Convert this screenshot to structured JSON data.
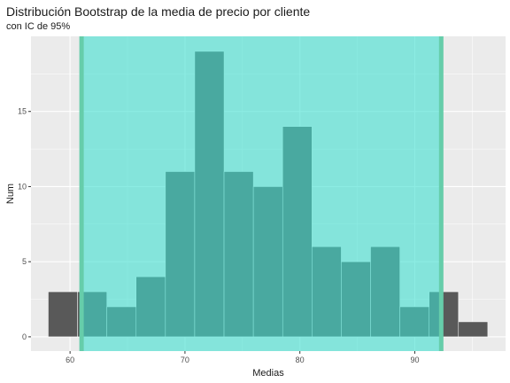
{
  "title": "Distribución Bootstrap de la media de precio por cliente",
  "subtitle": "con IC de 95%",
  "colors": {
    "panel": "#ebebeb",
    "grid_major": "#ffffff",
    "bar_fill": "#595959",
    "bar_outline": "#ffffff",
    "ci_fill": "#40e0d0",
    "ci_line": "#66cdaa"
  },
  "chart_data": {
    "type": "bar",
    "subtype": "histogram",
    "xlabel": "Medias",
    "ylabel": "Num",
    "xlim": [
      56.6,
      97.9
    ],
    "ylim": [
      -0.95,
      20
    ],
    "x_ticks": [
      60,
      70,
      80,
      90
    ],
    "y_ticks": [
      0,
      5,
      10,
      15
    ],
    "bin_width": 2.55,
    "bins": [
      {
        "start": 58.1,
        "count": 3
      },
      {
        "start": 60.65,
        "count": 3
      },
      {
        "start": 63.2,
        "count": 2
      },
      {
        "start": 65.75,
        "count": 4
      },
      {
        "start": 68.3,
        "count": 11
      },
      {
        "start": 70.85,
        "count": 19
      },
      {
        "start": 73.4,
        "count": 11
      },
      {
        "start": 75.95,
        "count": 10
      },
      {
        "start": 78.5,
        "count": 14
      },
      {
        "start": 81.05,
        "count": 6
      },
      {
        "start": 83.6,
        "count": 5
      },
      {
        "start": 86.15,
        "count": 6
      },
      {
        "start": 88.7,
        "count": 2
      },
      {
        "start": 91.25,
        "count": 3
      },
      {
        "start": 93.8,
        "count": 1
      }
    ],
    "confidence_interval": {
      "lower": 61.0,
      "upper": 92.3
    },
    "grid": true
  }
}
